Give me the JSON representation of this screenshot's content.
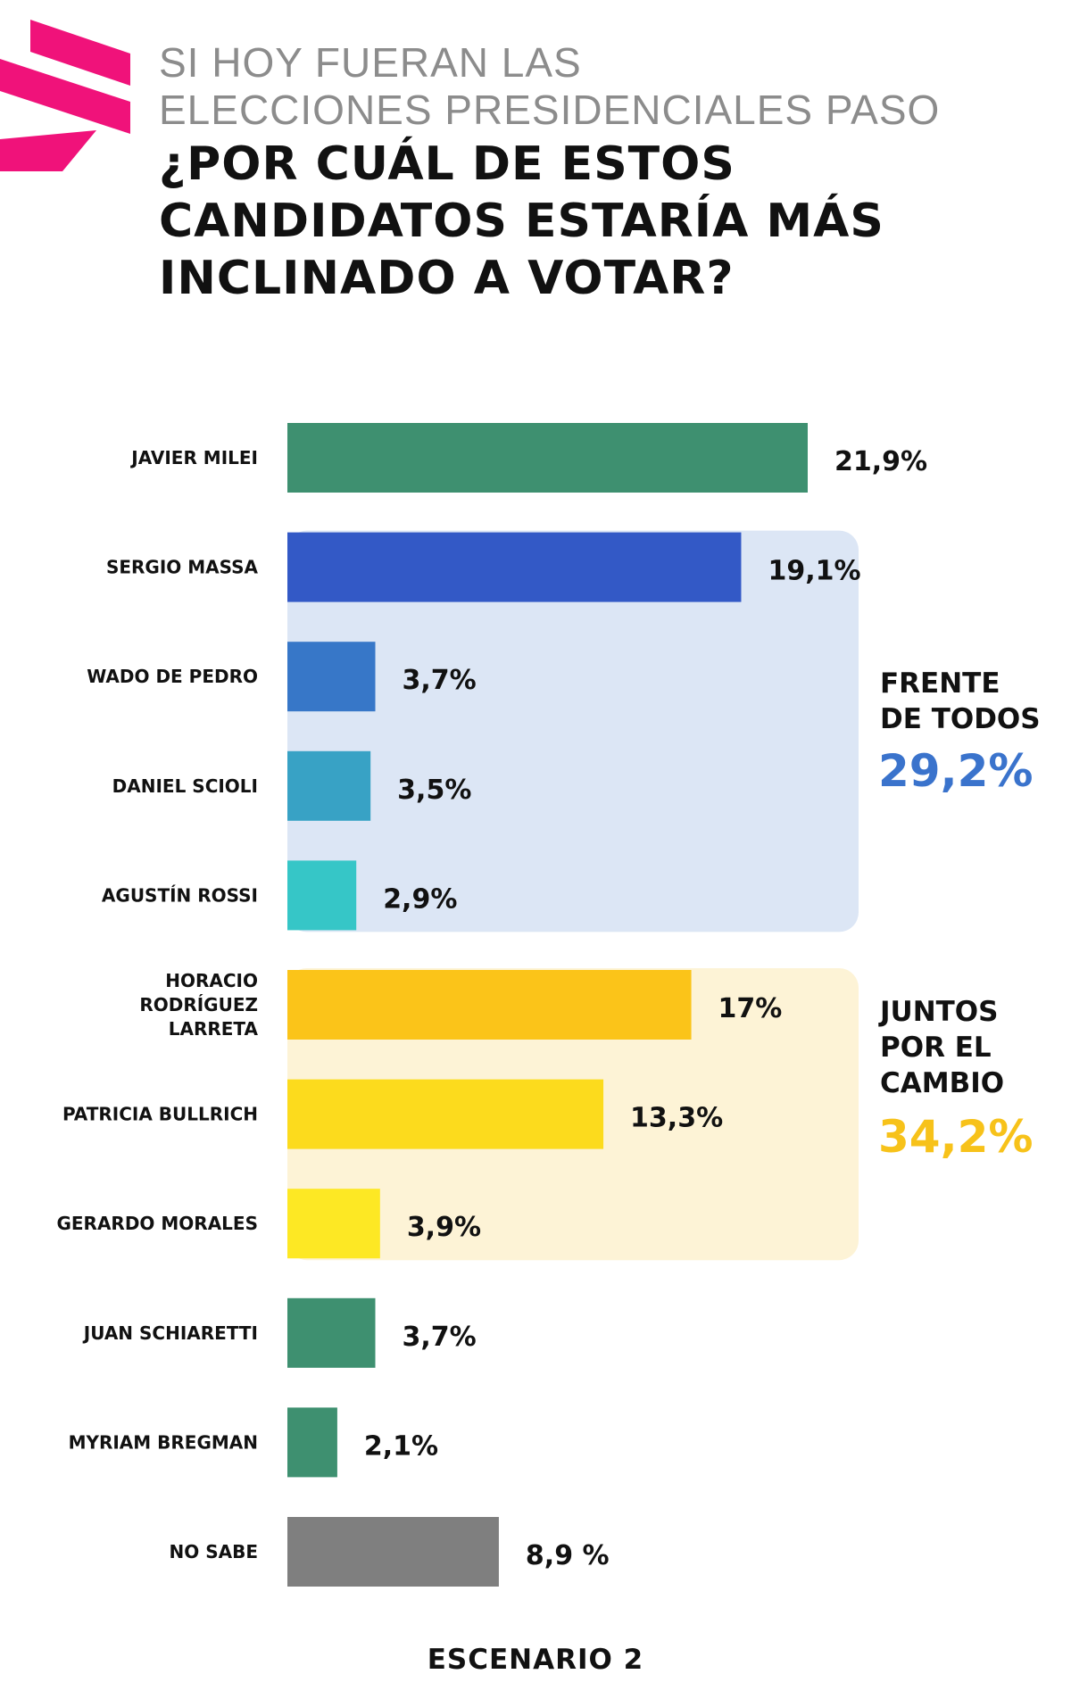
{
  "header": {
    "subtitle": "SI HOY FUERAN LAS\nELECCIONES PRESIDENCIALES PASO",
    "title": "¿POR CUÁL DE ESTOS\nCANDIDATOS ESTARÍA MÁS\nINCLINADO A VOTAR?"
  },
  "colors": {
    "logo": "#f0127a",
    "frente_panel": "#dce6f5",
    "juntos_panel": "#fdf3d6",
    "frente_total": "#3a73cc",
    "juntos_total": "#f7c21a"
  },
  "chart_data": {
    "type": "bar",
    "orientation": "horizontal",
    "title": "¿POR CUÁL DE ESTOS CANDIDATOS ESTARÍA MÁS INCLINADO A VOTAR?",
    "categories": [
      "JAVIER MILEI",
      "SERGIO MASSA",
      "WADO DE PEDRO",
      "DANIEL SCIOLI",
      "AGUSTÍN ROSSI",
      "HORACIO\nRODRÍGUEZ\nLARRETA",
      "PATRICIA BULLRICH",
      "GERARDO MORALES",
      "JUAN SCHIARETTI",
      "MYRIAM BREGMAN",
      "NO SABE"
    ],
    "values": [
      21.9,
      19.1,
      3.7,
      3.5,
      2.9,
      17,
      13.3,
      3.9,
      3.7,
      2.1,
      8.9
    ],
    "value_labels": [
      "21,9%",
      "19,1%",
      "3,7%",
      "3,5%",
      "2,9%",
      "17%",
      "13,3%",
      "3,9%",
      "3,7%",
      "2,1%",
      "8,9 %"
    ],
    "bar_colors": [
      "#3e9070",
      "#3359c6",
      "#3777c8",
      "#38a2c5",
      "#36c6c7",
      "#fbc419",
      "#fcdb1d",
      "#fde824",
      "#3e9070",
      "#3e9070",
      "#7f7f7f"
    ],
    "xlim": [
      0,
      21.9
    ],
    "grid": false,
    "legend": "none",
    "groups": [
      {
        "name": "FRENTE\nDE TODOS",
        "total_label": "29,2%",
        "total": 29.2,
        "from_index": 1,
        "to_index": 4
      },
      {
        "name": "JUNTOS\nPOR EL\nCAMBIO",
        "total_label": "34,2%",
        "total": 34.2,
        "from_index": 5,
        "to_index": 7
      }
    ]
  },
  "footer": {
    "scenario": "ESCENARIO 2"
  }
}
